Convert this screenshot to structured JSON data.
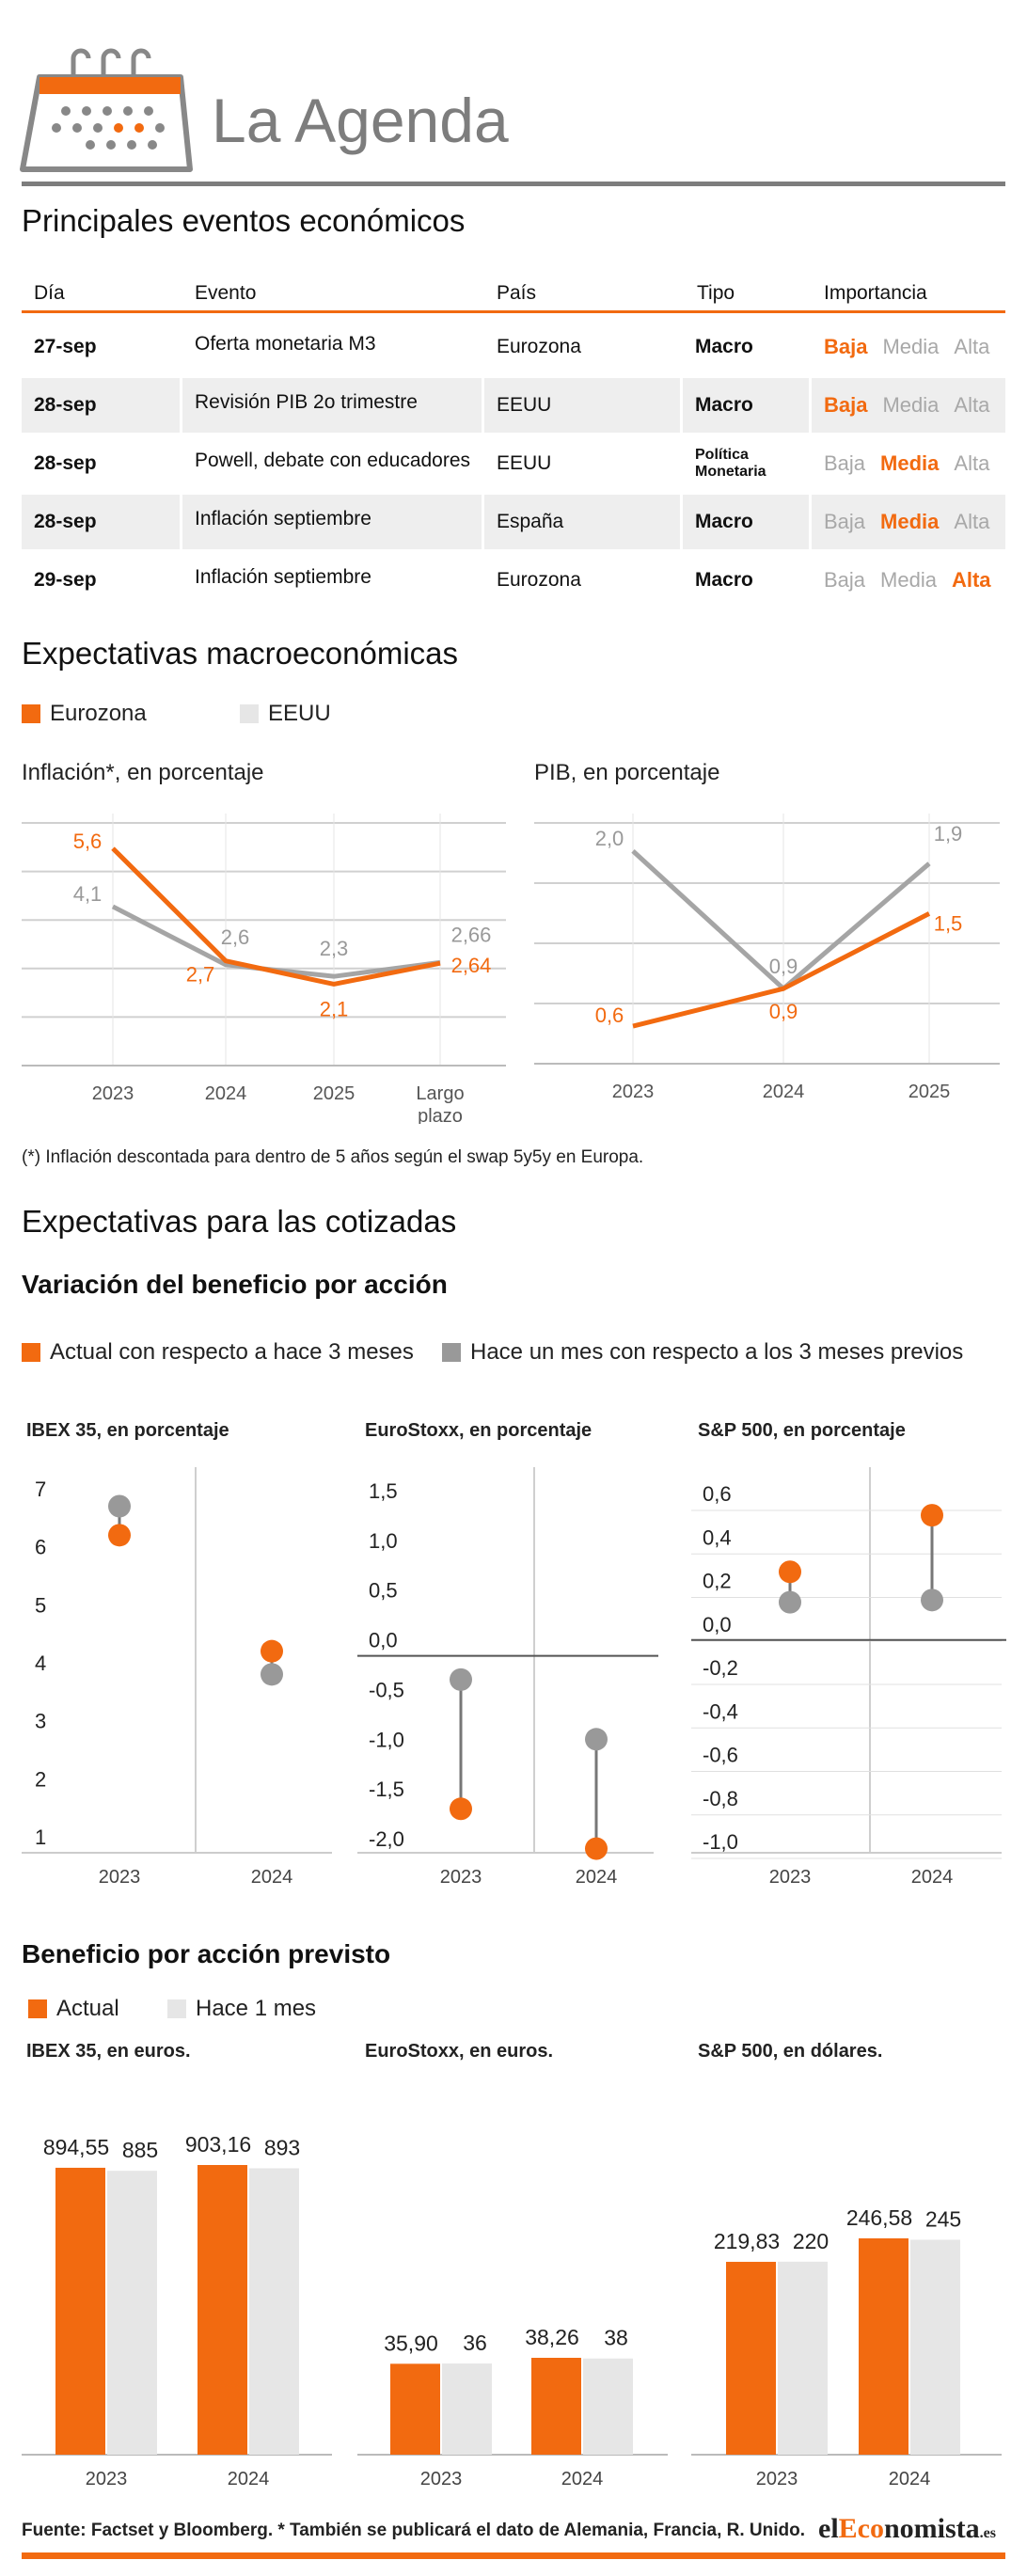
{
  "header": {
    "title": "La Agenda"
  },
  "events": {
    "title": "Principales eventos económicos",
    "columns": [
      "Día",
      "Evento",
      "País",
      "Tipo",
      "Importancia"
    ],
    "importance_levels": [
      "Baja",
      "Media",
      "Alta"
    ],
    "rows": [
      {
        "dia": "27-sep",
        "evento": "Oferta monetaria M3",
        "pais": "Eurozona",
        "tipo": "Macro",
        "importancia": "Baja"
      },
      {
        "dia": "28-sep",
        "evento": "Revisión PIB 2o trimestre",
        "pais": "EEUU",
        "tipo": "Macro",
        "importancia": "Baja"
      },
      {
        "dia": "28-sep",
        "evento": "Powell, debate con educadores",
        "pais": "EEUU",
        "tipo": "Política Monetaria",
        "importancia": "Media"
      },
      {
        "dia": "28-sep",
        "evento": "Inflación septiembre",
        "pais": "España",
        "tipo": "Macro",
        "importancia": "Media"
      },
      {
        "dia": "29-sep",
        "evento": "Inflación septiembre",
        "pais": "Eurozona",
        "tipo": "Macro",
        "importancia": "Alta"
      }
    ]
  },
  "macro": {
    "title": "Expectativas macroeconómicas",
    "legend": [
      "Eurozona",
      "EEUU"
    ],
    "note": "(*) Inflación descontada para dentro de 5 años según el swap 5y5y en Europa."
  },
  "cotizadas": {
    "title": "Expectativas para las cotizadas",
    "variacion_title": "Variación del beneficio por acción",
    "variacion_legend": [
      "Actual con respecto a hace 3 meses",
      "Hace un mes con respecto a los 3 meses previos"
    ],
    "bpa_title": "Beneficio por acción previsto",
    "bpa_legend": [
      "Actual",
      "Hace 1 mes"
    ]
  },
  "colors": {
    "accent": "#F26A10",
    "secondary_gray": "#999999",
    "light_gray": "#e6e6e6"
  },
  "chart_data": [
    {
      "type": "line",
      "title": "Inflación*, en porcentaje",
      "categories": [
        "2023",
        "2024",
        "2025",
        "Largo plazo"
      ],
      "series": [
        {
          "name": "Eurozona",
          "values": [
            5.6,
            2.7,
            2.1,
            2.64
          ],
          "labels": [
            "5,6",
            "2,7",
            "2,1",
            "2,64"
          ]
        },
        {
          "name": "EEUU",
          "values": [
            4.1,
            2.6,
            2.3,
            2.66
          ],
          "labels": [
            "4,1",
            "2,6",
            "2,3",
            "2,66"
          ]
        }
      ],
      "ylim": [
        0,
        6.5
      ],
      "grid": true
    },
    {
      "type": "line",
      "title": "PIB, en porcentaje",
      "categories": [
        "2023",
        "2024",
        "2025"
      ],
      "series": [
        {
          "name": "Eurozona",
          "values": [
            0.6,
            0.9,
            1.5
          ],
          "labels": [
            "0,6",
            "0,9",
            "1,5"
          ]
        },
        {
          "name": "EEUU",
          "values": [
            2.0,
            0.9,
            1.9
          ],
          "labels": [
            "2,0",
            "0,9",
            "1,9"
          ]
        }
      ],
      "ylim": [
        0.3,
        2.3
      ],
      "grid": true
    },
    {
      "type": "scatter",
      "title": "IBEX 35, en porcentaje",
      "categories": [
        "2023",
        "2024"
      ],
      "series": [
        {
          "name": "Actual con respecto a hace 3 meses",
          "values": [
            6.2,
            4.2
          ]
        },
        {
          "name": "Hace un mes con respecto a los 3 meses previos",
          "values": [
            6.7,
            3.8
          ]
        }
      ],
      "yticks": [
        {
          "v": 7,
          "t": "7"
        },
        {
          "v": 6,
          "t": "6"
        },
        {
          "v": 5,
          "t": "5"
        },
        {
          "v": 4,
          "t": "4"
        },
        {
          "v": 3,
          "t": "3"
        },
        {
          "v": 2,
          "t": "2"
        },
        {
          "v": 1,
          "t": "1"
        }
      ]
    },
    {
      "type": "scatter",
      "title": "EuroStoxx, en porcentaje",
      "categories": [
        "2023",
        "2024"
      ],
      "series": [
        {
          "name": "Actual con respecto a hace 3 meses",
          "values": [
            -1.7,
            -2.1
          ]
        },
        {
          "name": "Hace un mes con respecto a los 3 meses previos",
          "values": [
            -0.4,
            -1.0
          ]
        }
      ],
      "yticks": [
        {
          "v": 1.5,
          "t": "1,5"
        },
        {
          "v": 1.0,
          "t": "1,0"
        },
        {
          "v": 0.5,
          "t": "0,5"
        },
        {
          "v": 0.0,
          "t": "0,0"
        },
        {
          "v": -0.5,
          "t": "-0,5"
        },
        {
          "v": -1.0,
          "t": "-1,0"
        },
        {
          "v": -1.5,
          "t": "-1,5"
        },
        {
          "v": -2.0,
          "t": "-2,0"
        }
      ]
    },
    {
      "type": "scatter",
      "title": "S&P 500, en porcentaje",
      "categories": [
        "2023",
        "2024"
      ],
      "series": [
        {
          "name": "Actual con respecto a hace 3 meses",
          "values": [
            0.24,
            0.5
          ]
        },
        {
          "name": "Hace un mes con respecto a los 3 meses previos",
          "values": [
            0.1,
            0.11
          ]
        }
      ],
      "yticks": [
        {
          "v": 0.6,
          "t": "0,6"
        },
        {
          "v": 0.4,
          "t": "0,4"
        },
        {
          "v": 0.2,
          "t": "0,2"
        },
        {
          "v": 0.0,
          "t": "0,0"
        },
        {
          "v": -0.2,
          "t": "-0,2"
        },
        {
          "v": -0.4,
          "t": "-0,4"
        },
        {
          "v": -0.6,
          "t": "-0,6"
        },
        {
          "v": -0.8,
          "t": "-0,8"
        },
        {
          "v": -1.0,
          "t": "-1,0"
        }
      ]
    },
    {
      "type": "bar",
      "title": "IBEX 35, en euros.",
      "categories": [
        "2023",
        "2024"
      ],
      "series": [
        {
          "name": "Actual",
          "values": [
            894.55,
            903.16
          ],
          "labels": [
            "894,55",
            "903,16"
          ]
        },
        {
          "name": "Hace 1 mes",
          "values": [
            885,
            893
          ],
          "labels": [
            "885",
            "893"
          ]
        }
      ]
    },
    {
      "type": "bar",
      "title": "EuroStoxx, en euros.",
      "categories": [
        "2023",
        "2024"
      ],
      "series": [
        {
          "name": "Actual",
          "values": [
            35.9,
            38.26
          ],
          "labels": [
            "35,90",
            "38,26"
          ]
        },
        {
          "name": "Hace 1 mes",
          "values": [
            36,
            38
          ],
          "labels": [
            "36",
            "38"
          ]
        }
      ]
    },
    {
      "type": "bar",
      "title": "S&P 500, en dólares.",
      "categories": [
        "2023",
        "2024"
      ],
      "series": [
        {
          "name": "Actual",
          "values": [
            219.83,
            246.58
          ],
          "labels": [
            "219,83",
            "246,58"
          ]
        },
        {
          "name": "Hace 1 mes",
          "values": [
            220,
            245
          ],
          "labels": [
            "220",
            "245"
          ]
        }
      ]
    }
  ],
  "footer": {
    "source": "Fuente: Factset y Bloomberg. * También se publicará el dato de Alemania, Francia, R. Unido.",
    "brand_prefix": "el",
    "brand_highlight": "Eco",
    "brand_suffix": "nomista",
    "brand_domain": ".es"
  }
}
